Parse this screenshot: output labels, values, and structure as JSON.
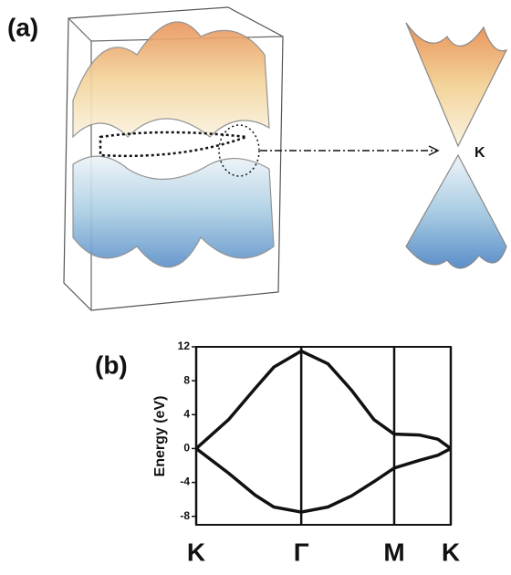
{
  "panel_a": {
    "label": "(a)",
    "point_label": "K"
  },
  "chart_data": {
    "type": "line",
    "panel_label": "(b)",
    "y_label": "Energy (eV)",
    "x": [
      0,
      0.4,
      0.73,
      0.96,
      1.3,
      1.63,
      1.92,
      2.2,
      2.45,
      2.76,
      2.99,
      3.15
    ],
    "series": [
      {
        "color": "#111111",
        "values": [
          0,
          3.4,
          7.1,
          9.6,
          11.5,
          10,
          6.9,
          3.4,
          1.7,
          1.6,
          1.1,
          0
        ]
      },
      {
        "color": "#111111",
        "values": [
          0,
          -2.9,
          -5.5,
          -6.9,
          -7.5,
          -6.9,
          -5.6,
          -3.9,
          -2.3,
          -1.4,
          -0.8,
          0
        ]
      }
    ],
    "xlim": [
      0,
      3.15
    ],
    "xticks": [
      {
        "value": 0,
        "label": "K"
      },
      {
        "value": 1.3,
        "label": "Γ"
      },
      {
        "value": 2.45,
        "label": "M"
      },
      {
        "value": 3.15,
        "label": "K"
      }
    ],
    "ylim": [
      -9,
      12
    ],
    "yticks": [
      12,
      8,
      4,
      0,
      -4,
      -8
    ],
    "grid_x": true
  }
}
